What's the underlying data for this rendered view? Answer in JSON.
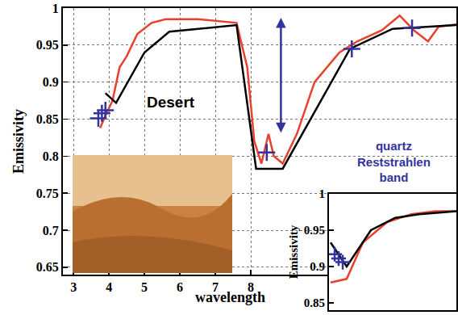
{
  "chart_data": [
    {
      "type": "line",
      "x_label": "wavelength",
      "y_label": "Emissivity",
      "xlim": [
        2.7,
        13.8
      ],
      "ylim": [
        0.64,
        1.0
      ],
      "xticks": [
        3,
        4,
        5,
        6,
        7,
        8
      ],
      "yticks": [
        0.65,
        0.7,
        0.75,
        0.8,
        0.85,
        0.9,
        0.95,
        1
      ],
      "grid": true,
      "annotations": [
        {
          "text": "Desert"
        },
        {
          "text": "quartz\nReststrahlen\nband"
        }
      ],
      "arrow": {
        "x": 8.85,
        "y": [
          0.83,
          0.987
        ],
        "color": "#3333a0"
      },
      "series": [
        {
          "type": "line",
          "color": "#e8412c",
          "line_style": "solid",
          "x": [
            3.75,
            3.9,
            4.1,
            4.3,
            4.5,
            4.8,
            5.2,
            5.6,
            6.5,
            7.0,
            7.6,
            7.9,
            8.1,
            8.3,
            8.5,
            8.65,
            8.9,
            9.3,
            9.8,
            10.5,
            11.0,
            11.7,
            12.2,
            12.6,
            13.0,
            13.3,
            13.8
          ],
          "values": [
            0.838,
            0.855,
            0.875,
            0.92,
            0.935,
            0.965,
            0.98,
            0.985,
            0.985,
            0.983,
            0.98,
            0.92,
            0.82,
            0.79,
            0.83,
            0.8,
            0.79,
            0.83,
            0.9,
            0.94,
            0.955,
            0.97,
            0.99,
            0.97,
            0.955,
            0.975,
            0.978
          ]
        },
        {
          "type": "line",
          "color": "#000000",
          "line_style": "solid",
          "x": [
            3.9,
            4.2,
            5.0,
            5.7,
            7.6,
            8.15,
            8.9,
            10.8,
            12.0,
            13.8
          ],
          "values": [
            0.885,
            0.872,
            0.94,
            0.968,
            0.977,
            0.783,
            0.783,
            0.945,
            0.972,
            0.977
          ]
        },
        {
          "type": "scatter",
          "color": "#3333a0",
          "marker": "cross",
          "x": [
            3.7,
            3.8,
            3.9,
            8.45,
            10.85,
            12.55
          ],
          "values": [
            0.851,
            0.858,
            0.862,
            0.805,
            0.945,
            0.973
          ]
        }
      ]
    },
    {
      "type": "line",
      "y_label": "Emissivity",
      "xlim": [
        3.5,
        13.8
      ],
      "ylim": [
        0.84,
        1.0
      ],
      "yticks": [
        0.85,
        0.9,
        0.95,
        1
      ],
      "tick_labels": "y",
      "series": [
        {
          "type": "line",
          "color": "#e8412c",
          "line_style": "solid",
          "x": [
            3.63,
            4.93,
            6.24,
            8.2,
            10.15,
            12.1,
            13.8
          ],
          "values": [
            0.878,
            0.883,
            0.933,
            0.961,
            0.972,
            0.976,
            0.976
          ]
        },
        {
          "type": "line",
          "color": "#000000",
          "line_style": "solid",
          "x": [
            3.63,
            4.93,
            6.89,
            8.85,
            10.8,
            13.8
          ],
          "values": [
            0.933,
            0.9,
            0.95,
            0.967,
            0.972,
            0.976
          ]
        },
        {
          "type": "scatter",
          "color": "#3333a0",
          "marker": "cross",
          "x": [
            3.96,
            4.28,
            4.61
          ],
          "values": [
            0.917,
            0.911,
            0.906
          ]
        }
      ]
    }
  ]
}
